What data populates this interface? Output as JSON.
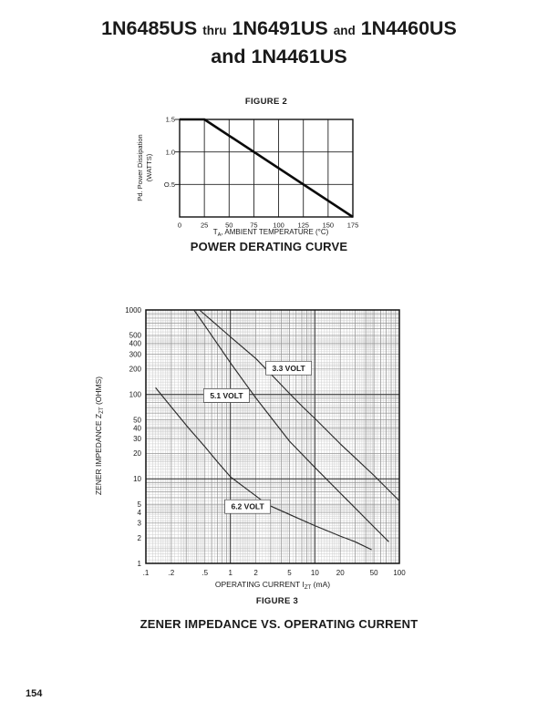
{
  "page": {
    "number": "154"
  },
  "title": {
    "line1": [
      {
        "t": "1N6485US",
        "s": "lg"
      },
      {
        "t": "thru",
        "s": "sm"
      },
      {
        "t": "1N6491US",
        "s": "lg"
      },
      {
        "t": "and",
        "s": "sm"
      },
      {
        "t": "1N4460US",
        "s": "lg"
      }
    ],
    "line2": [
      {
        "t": "and",
        "s": "lg"
      },
      {
        "t": "1N4461US",
        "s": "lg"
      }
    ]
  },
  "chart_data": [
    {
      "type": "line",
      "scale": "linear",
      "figure_label": "FIGURE 2",
      "caption": "POWER DERATING CURVE",
      "xlabel": {
        "pre": "T",
        "sub": "A",
        "post": ", AMBIENT TEMPERATURE (°C)"
      },
      "ylabel": {
        "line1": "Pd. Power Dissipation",
        "line2": "(WATTS)"
      },
      "xlim": [
        0,
        175
      ],
      "ylim": [
        0,
        1.5
      ],
      "x_ticks": [
        {
          "v": 0,
          "label": "0"
        },
        {
          "v": 25,
          "label": "25"
        },
        {
          "v": 50,
          "label": "50"
        },
        {
          "v": 75,
          "label": "75"
        },
        {
          "v": 100,
          "label": "100"
        },
        {
          "v": 125,
          "label": "125"
        },
        {
          "v": 150,
          "label": "150"
        },
        {
          "v": 175,
          "label": "175"
        }
      ],
      "y_ticks": [
        {
          "v": 1.5,
          "label": "1.5"
        },
        {
          "v": 1.0,
          "label": "1.0"
        },
        {
          "v": 0.5,
          "label": "O.5"
        }
      ],
      "grid": {
        "x_step": 25,
        "y_step": 0.5
      },
      "series": [
        {
          "name": "power-derating-line",
          "points": [
            [
              0,
              1.5
            ],
            [
              25,
              1.5
            ],
            [
              175,
              0
            ]
          ]
        }
      ]
    },
    {
      "type": "line",
      "scale": "log-log",
      "figure_label": "FIGURE 3",
      "caption": "ZENER IMPEDANCE VS. OPERATING CURRENT",
      "xlabel": {
        "pre": "OPERATING CURRENT I",
        "sub": "ZT",
        "post": " (mA)"
      },
      "ylabel": {
        "pre": "ZENER IMPEDANCE Z",
        "sub": "ZT",
        "post": " (OHMS)"
      },
      "xlim": [
        0.1,
        100
      ],
      "ylim": [
        1,
        1000
      ],
      "x_ticks": [
        {
          "v": 0.1,
          "label": ".1"
        },
        {
          "v": 0.2,
          "label": ".2"
        },
        {
          "v": 0.5,
          "label": ".5"
        },
        {
          "v": 1,
          "label": "1"
        },
        {
          "v": 2,
          "label": "2"
        },
        {
          "v": 5,
          "label": "5"
        },
        {
          "v": 10,
          "label": "10"
        },
        {
          "v": 20,
          "label": "20"
        },
        {
          "v": 50,
          "label": "50"
        },
        {
          "v": 100,
          "label": "100"
        }
      ],
      "y_ticks": [
        {
          "v": 1000,
          "label": "1000"
        },
        {
          "v": 500,
          "label": "500"
        },
        {
          "v": 400,
          "label": "400"
        },
        {
          "v": 300,
          "label": "300"
        },
        {
          "v": 200,
          "label": "200"
        },
        {
          "v": 100,
          "label": "100"
        },
        {
          "v": 50,
          "label": "50"
        },
        {
          "v": 40,
          "label": "40"
        },
        {
          "v": 30,
          "label": "30"
        },
        {
          "v": 20,
          "label": "20"
        },
        {
          "v": 10,
          "label": "10"
        },
        {
          "v": 5,
          "label": "5"
        },
        {
          "v": 4,
          "label": "4"
        },
        {
          "v": 3,
          "label": "3"
        },
        {
          "v": 2,
          "label": "2"
        },
        {
          "v": 1,
          "label": "1"
        }
      ],
      "series": [
        {
          "name": "3.3 VOLT",
          "label_at": [
            4.9,
            205
          ],
          "points": [
            [
              0.43,
              1000
            ],
            [
              0.6,
              750
            ],
            [
              1,
              480
            ],
            [
              1.5,
              340
            ],
            [
              2,
              266
            ],
            [
              3,
              175
            ],
            [
              5,
              103
            ],
            [
              7.3,
              70
            ],
            [
              10,
              52
            ],
            [
              20,
              26
            ],
            [
              50,
              11
            ],
            [
              100,
              5.5
            ]
          ]
        },
        {
          "name": "5.1 VOLT",
          "label_at": [
            0.9,
            97
          ],
          "points": [
            [
              0.37,
              1000
            ],
            [
              0.5,
              650
            ],
            [
              0.7,
              400
            ],
            [
              1,
              237
            ],
            [
              1.5,
              135
            ],
            [
              2,
              91
            ],
            [
              3,
              54
            ],
            [
              5,
              28
            ],
            [
              10,
              13.7
            ],
            [
              20,
              6.8
            ],
            [
              50,
              2.7
            ],
            [
              75,
              1.8
            ]
          ]
        },
        {
          "name": "6.2 VOLT",
          "label_at": [
            1.6,
            4.7
          ],
          "points": [
            [
              0.13,
              120
            ],
            [
              0.2,
              71
            ],
            [
              0.32,
              40
            ],
            [
              0.5,
              24
            ],
            [
              0.7,
              16
            ],
            [
              1,
              10.6
            ],
            [
              1.5,
              7.8
            ],
            [
              2,
              6.3
            ],
            [
              2.7,
              5
            ],
            [
              5,
              3.8
            ],
            [
              10,
              2.8
            ],
            [
              20,
              2.1
            ],
            [
              30,
              1.8
            ],
            [
              47,
              1.45
            ]
          ]
        }
      ]
    }
  ]
}
